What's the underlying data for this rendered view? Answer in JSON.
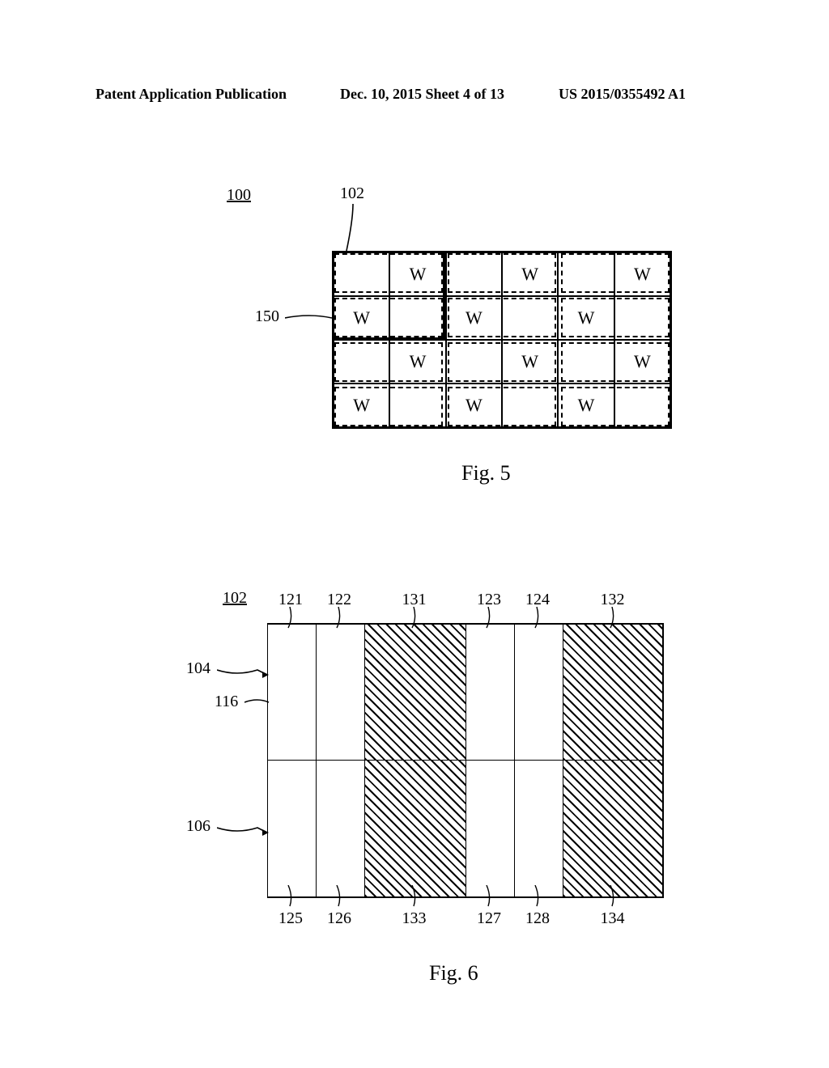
{
  "header": {
    "left": "Patent Application Publication",
    "center": "Dec. 10, 2015  Sheet 4 of 13",
    "right": "US 2015/0355492 A1"
  },
  "fig5": {
    "caption": "Fig. 5",
    "ref_100": "100",
    "ref_102": "102",
    "ref_150": "150",
    "cell_letter": "W",
    "grid_rows": 4,
    "grid_cols": 6,
    "w_pattern": [
      [
        0,
        1,
        0,
        1,
        0,
        1
      ],
      [
        1,
        0,
        1,
        0,
        1,
        0
      ],
      [
        0,
        1,
        0,
        1,
        0,
        1
      ],
      [
        1,
        0,
        1,
        0,
        1,
        0
      ]
    ]
  },
  "fig6": {
    "caption": "Fig. 6",
    "ref_102": "102",
    "ref_104": "104",
    "ref_106": "106",
    "ref_116": "116",
    "top_labels": [
      "121",
      "122",
      "131",
      "123",
      "124",
      "132"
    ],
    "bottom_labels": [
      "125",
      "126",
      "133",
      "127",
      "128",
      "134"
    ],
    "col_hatched": [
      false,
      false,
      true,
      false,
      false,
      true
    ]
  },
  "colors": {
    "line": "#000000",
    "bg": "#ffffff"
  }
}
